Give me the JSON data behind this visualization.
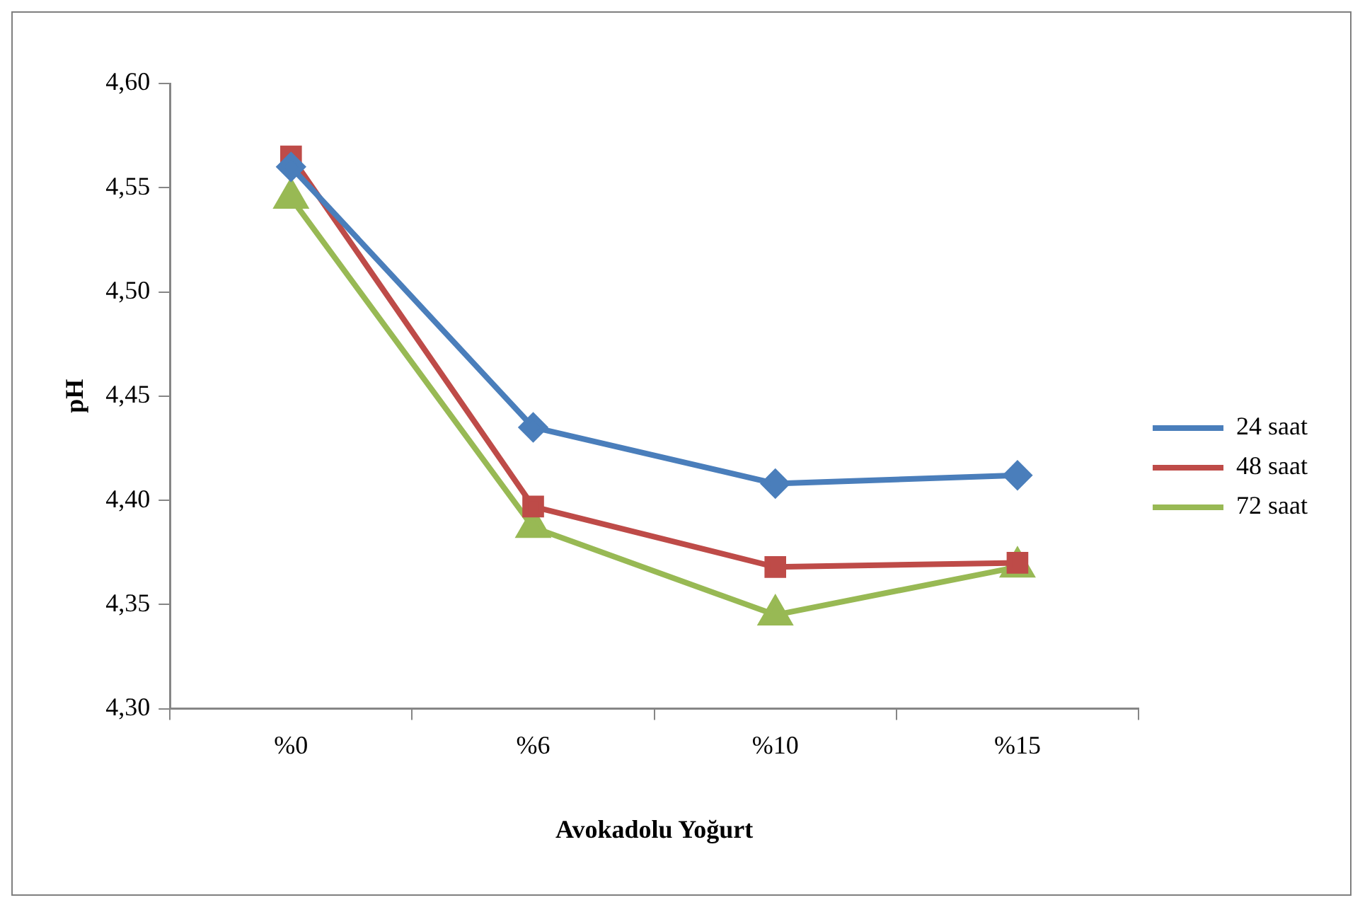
{
  "chart_data": {
    "type": "line",
    "xlabel": "Avokadolu Yoğurt",
    "ylabel": "pH",
    "categories": [
      "%0",
      "%6",
      "%10",
      "%15"
    ],
    "series": [
      {
        "name": "24 saat",
        "color": "#4a7ebb",
        "marker": "diamond",
        "values": [
          4.56,
          4.435,
          4.408,
          4.412
        ]
      },
      {
        "name": "48 saat",
        "color": "#be4b48",
        "marker": "square",
        "values": [
          4.565,
          4.397,
          4.368,
          4.37
        ]
      },
      {
        "name": "72 saat",
        "color": "#98b954",
        "marker": "triangle",
        "values": [
          4.545,
          4.387,
          4.345,
          4.368
        ]
      }
    ],
    "ylim": [
      4.3,
      4.6
    ],
    "yticks": [
      {
        "value": 4.3,
        "label": "4,30"
      },
      {
        "value": 4.35,
        "label": "4,35"
      },
      {
        "value": 4.4,
        "label": "4,40"
      },
      {
        "value": 4.45,
        "label": "4,45"
      },
      {
        "value": 4.5,
        "label": "4,50"
      },
      {
        "value": 4.55,
        "label": "4,55"
      },
      {
        "value": 4.6,
        "label": "4,60"
      }
    ],
    "grid": false,
    "legend": "right",
    "line_style": "solid"
  }
}
